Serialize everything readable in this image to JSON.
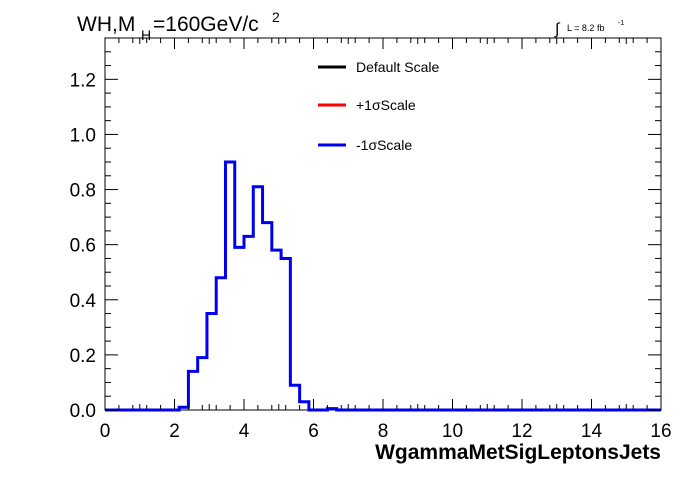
{
  "title_main": "WH,M",
  "title_sub": "H",
  "title_rest": "=160GeV/c",
  "title_sup": "2",
  "lumi_integral": "∫",
  "lumi_text": "L = 8.2 fb",
  "lumi_sup": "-1",
  "colors": {
    "default": "#000000",
    "plus": "#ff0000",
    "minus": "#0000ee",
    "frame": "#000000",
    "background": "#ffffff"
  },
  "chart_data": {
    "type": "line",
    "style": "step-histogram",
    "xlabel": "WgammaMetSigLeptonsJets",
    "ylabel": "",
    "xlim": [
      0,
      16
    ],
    "ylim": [
      0,
      1.35
    ],
    "x_ticks": [
      "0",
      "2",
      "4",
      "6",
      "8",
      "10",
      "12",
      "14",
      "16"
    ],
    "y_ticks": [
      "0.0",
      "0.2",
      "0.4",
      "0.6",
      "0.8",
      "1.0",
      "1.2"
    ],
    "y_tick_values": [
      0,
      0.2,
      0.4,
      0.6,
      0.8,
      1.0,
      1.2
    ],
    "grid": false,
    "legend_position": "top-center",
    "bin_width": 0.2667,
    "bin_edges_start": 0,
    "series": [
      {
        "name": "Default Scale",
        "color": "#000000",
        "draw": false,
        "values": []
      },
      {
        "name": "+1σScale",
        "color": "#ff0000",
        "draw": false,
        "values": []
      },
      {
        "name": "-1σScale",
        "color": "#0000ee",
        "draw": true,
        "values": [
          0,
          0,
          0,
          0,
          0,
          0,
          0,
          0,
          0.01,
          0.14,
          0.19,
          0.35,
          0.48,
          0.9,
          0.59,
          0.63,
          0.81,
          0.68,
          0.58,
          0.55,
          0.09,
          0.03,
          0,
          0,
          0.005,
          0,
          0,
          0,
          0,
          0,
          0,
          0,
          0,
          0,
          0,
          0,
          0,
          0,
          0,
          0,
          0,
          0,
          0,
          0,
          0,
          0,
          0,
          0,
          0,
          0,
          0,
          0,
          0,
          0,
          0,
          0,
          0,
          0,
          0,
          0
        ]
      }
    ]
  }
}
